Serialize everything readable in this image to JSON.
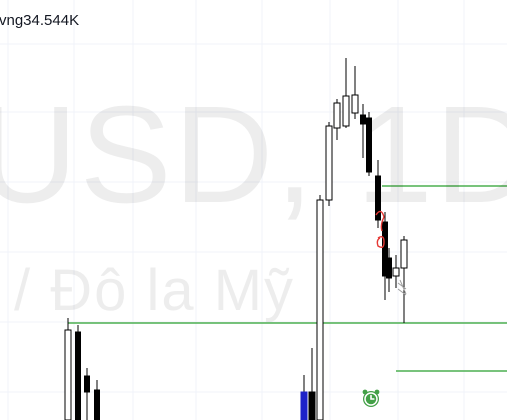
{
  "volume_label": "vng34.544K",
  "watermark": {
    "symbol_line": "USD, 1D",
    "description_line": "/ Đô la Mỹ"
  },
  "alert_icon": "alarm-clock-icon",
  "colors": {
    "grid": "#f0f3fa",
    "up_body": "#ffffff",
    "down_body": "#000000",
    "wick": "#000000",
    "level_line": "#4caf50",
    "annotation_text": "#e53935",
    "selected_bar": "#1e22c8",
    "alarm_icon": "#43a047"
  },
  "chart_data": {
    "type": "candlestick",
    "series": [
      {
        "name": "",
        "ohlc": []
      }
    ]
  }
}
